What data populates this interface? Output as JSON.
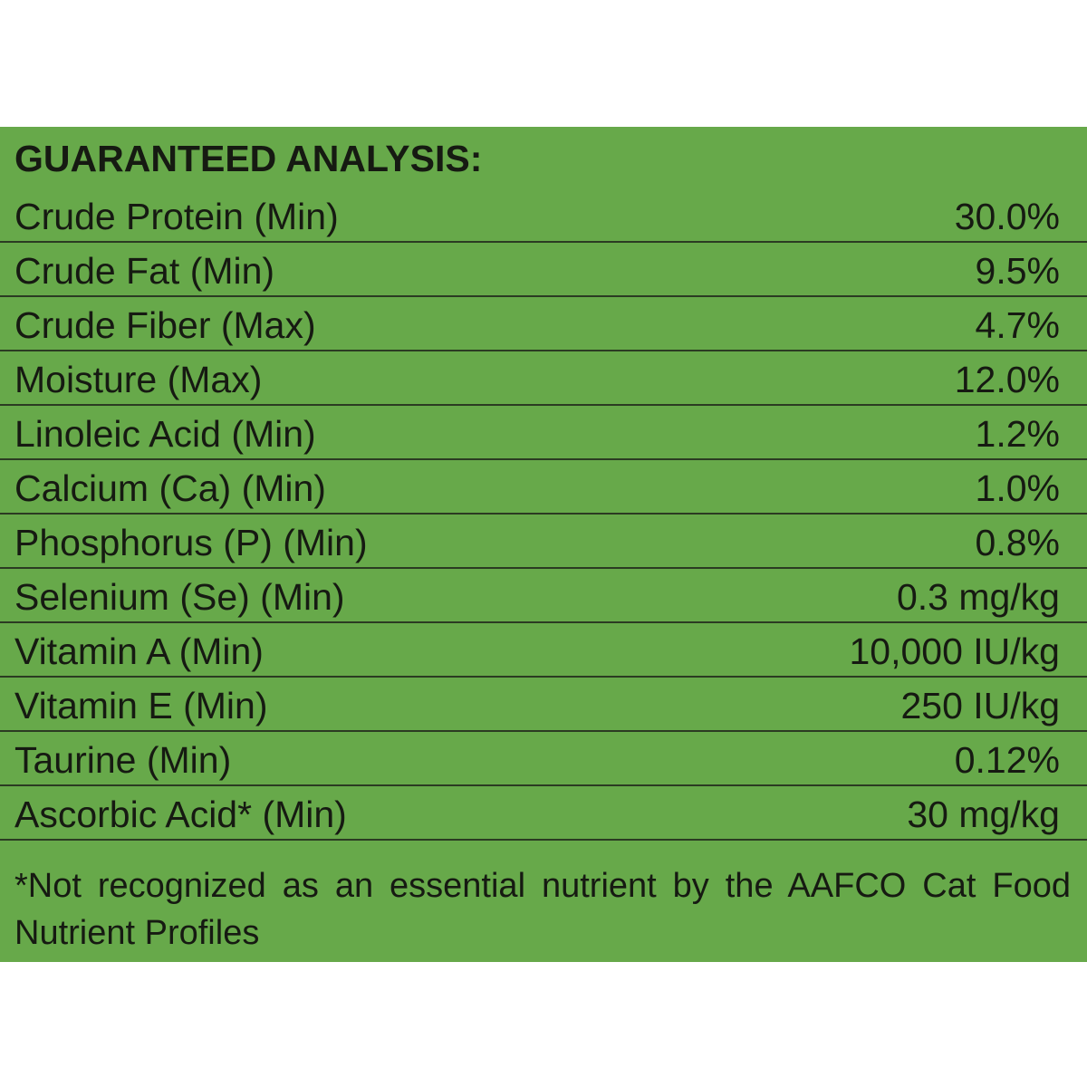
{
  "title": "GUARANTEED ANALYSIS:",
  "rows": [
    [
      "Crude Protein (Min)",
      "30.0%"
    ],
    [
      "Crude Fat (Min)",
      "9.5%"
    ],
    [
      "Crude Fiber (Max)",
      "4.7%"
    ],
    [
      "Moisture (Max)",
      "12.0%"
    ],
    [
      "Linoleic Acid (Min)",
      "1.2%"
    ],
    [
      "Calcium (Ca) (Min)",
      "1.0%"
    ],
    [
      "Phosphorus (P) (Min)",
      "0.8%"
    ],
    [
      "Selenium (Se) (Min)",
      "0.3 mg/kg"
    ],
    [
      "Vitamin A (Min)",
      "10,000 IU/kg"
    ],
    [
      "Vitamin E (Min)",
      "250 IU/kg"
    ],
    [
      "Taurine (Min)",
      "0.12%"
    ],
    [
      "Ascorbic Acid* (Min)",
      "30 mg/kg"
    ]
  ],
  "footnote": "*Not recognized as an essential nutrient by the AAFCO Cat Food Nutrient Profiles"
}
